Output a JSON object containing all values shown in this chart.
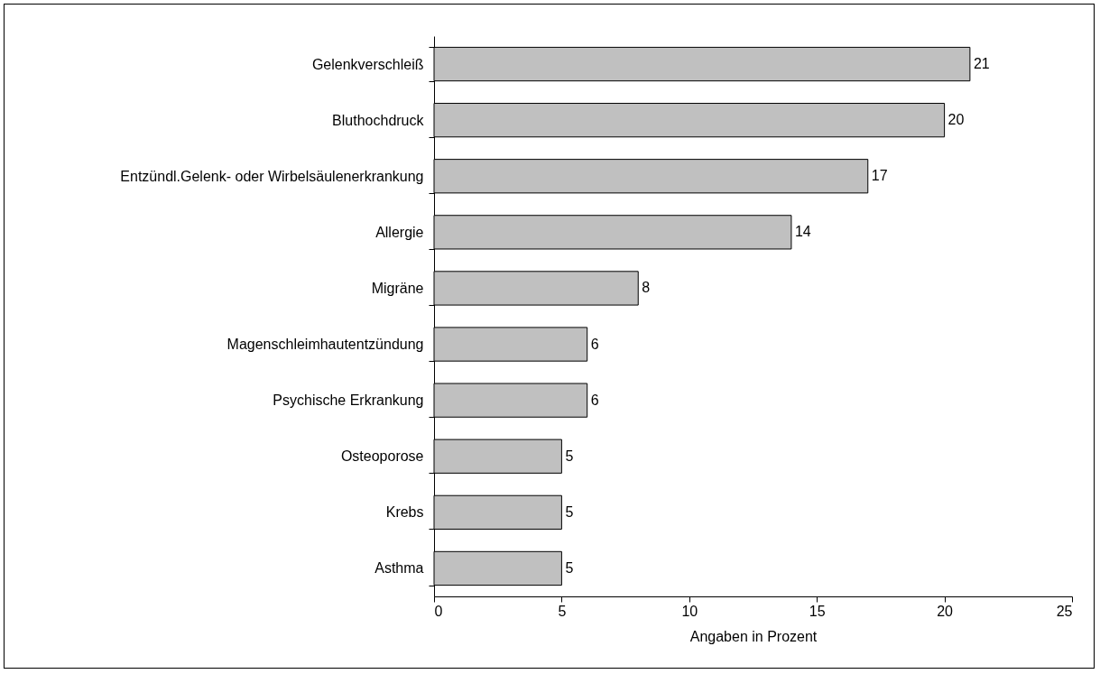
{
  "chart_data": {
    "type": "bar",
    "orientation": "horizontal",
    "xlabel": "Angaben in Prozent",
    "categories": [
      "Gelenkverschleiß",
      "Bluthochdruck",
      "Entzündl.Gelenk- oder Wirbelsäulenerkrankung",
      "Allergie",
      "Migräne",
      "Magenschleimhautentzündung",
      "Psychische Erkrankung",
      "Osteoporose",
      "Krebs",
      "Asthma"
    ],
    "values": [
      21,
      20,
      17,
      14,
      8,
      6,
      6,
      5,
      5,
      5
    ],
    "color": "#c0c0c0",
    "xlim": [
      0,
      25
    ],
    "xticks": [
      0,
      5,
      10,
      15,
      20,
      25
    ],
    "grid": false,
    "data_labels": true
  }
}
